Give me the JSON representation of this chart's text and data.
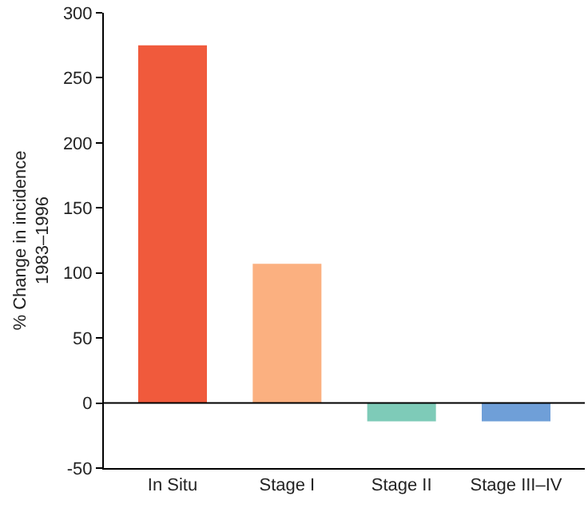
{
  "chart_data": {
    "type": "bar",
    "ylabel": "% Change in incidence\n1983–1996",
    "categories": [
      "In Situ",
      "Stage I",
      "Stage II",
      "Stage III–IV"
    ],
    "values": [
      275,
      107,
      -14,
      -14
    ],
    "colors": [
      "#f05a3c",
      "#fbb080",
      "#7ecbb8",
      "#6f9fd8"
    ],
    "ylim": [
      -50,
      300
    ],
    "yticks": [
      -50,
      0,
      50,
      100,
      150,
      200,
      250,
      300
    ],
    "grid": false,
    "ref_lines": [
      {
        "axis": "y",
        "value": 0,
        "color": "#000000"
      }
    ]
  }
}
